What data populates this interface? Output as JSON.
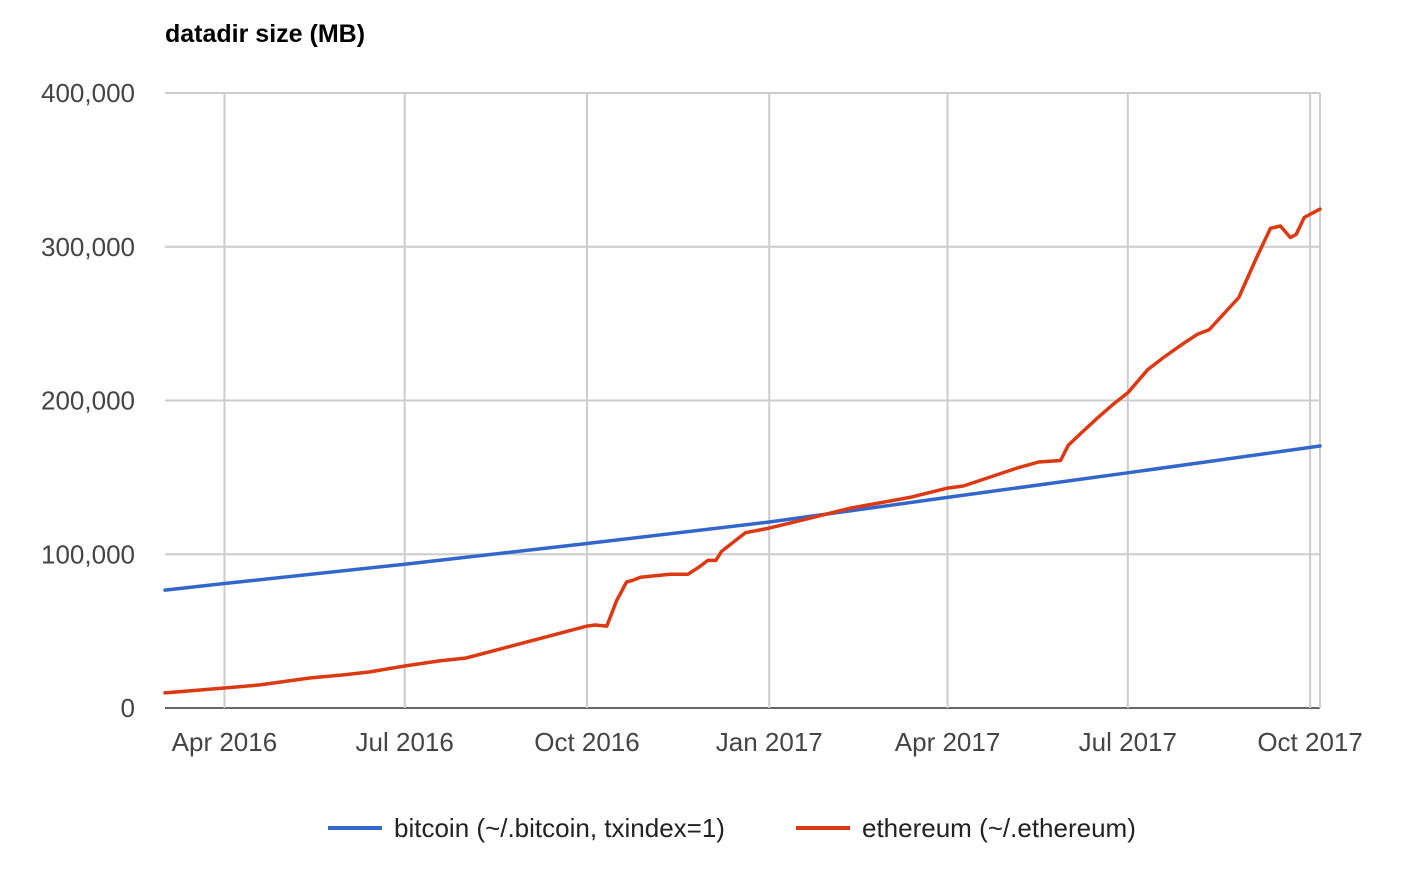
{
  "chart_data": {
    "type": "line",
    "title": "datadir size (MB)",
    "xlabel": "",
    "ylabel": "",
    "xlim": [
      "2016-03-02",
      "2017-10-06"
    ],
    "ylim": [
      0,
      400000
    ],
    "grid": true,
    "legend_position": "bottom",
    "y_ticks": [
      0,
      100000,
      200000,
      300000,
      400000
    ],
    "y_tick_labels": [
      "0",
      "100,000",
      "200,000",
      "300,000",
      "400,000"
    ],
    "x_ticks": [
      "2016-04-01",
      "2016-07-01",
      "2016-10-01",
      "2017-01-01",
      "2017-04-01",
      "2017-07-01",
      "2017-10-01"
    ],
    "x_tick_labels": [
      "Apr 2016",
      "Jul 2016",
      "Oct 2016",
      "Jan 2017",
      "Apr 2017",
      "Jul 2017",
      "Oct 2017"
    ],
    "series": [
      {
        "name": "bitcoin (~/.bitcoin, txindex=1)",
        "color": "#3366cc",
        "points": [
          [
            "2016-03-02",
            76700
          ],
          [
            "2016-04-01",
            81000
          ],
          [
            "2016-07-01",
            93500
          ],
          [
            "2016-10-01",
            107000
          ],
          [
            "2017-01-01",
            121000
          ],
          [
            "2017-04-01",
            137000
          ],
          [
            "2017-07-01",
            153000
          ],
          [
            "2017-10-06",
            170400
          ]
        ]
      },
      {
        "name": "ethereum (~/.ethereum)",
        "color": "#dc3912",
        "points": [
          [
            "2016-03-02",
            9800
          ],
          [
            "2016-04-01",
            13000
          ],
          [
            "2016-04-19",
            15000
          ],
          [
            "2016-05-14",
            19500
          ],
          [
            "2016-05-31",
            21500
          ],
          [
            "2016-06-13",
            23400
          ],
          [
            "2016-07-01",
            27300
          ],
          [
            "2016-07-18",
            30600
          ],
          [
            "2016-08-01",
            32500
          ],
          [
            "2016-10-01",
            53300
          ],
          [
            "2016-10-05",
            54000
          ],
          [
            "2016-10-11",
            53300
          ],
          [
            "2016-10-16",
            70000
          ],
          [
            "2016-10-21",
            82000
          ],
          [
            "2016-10-24",
            83000
          ],
          [
            "2016-10-28",
            85000
          ],
          [
            "2016-11-12",
            87000
          ],
          [
            "2016-11-21",
            87000
          ],
          [
            "2016-11-27",
            92000
          ],
          [
            "2016-12-01",
            96000
          ],
          [
            "2016-12-05",
            96000
          ],
          [
            "2016-12-08",
            102000
          ],
          [
            "2016-12-15",
            109000
          ],
          [
            "2016-12-20",
            114000
          ],
          [
            "2017-01-01",
            117000
          ],
          [
            "2017-01-17",
            122000
          ],
          [
            "2017-02-11",
            130000
          ],
          [
            "2017-02-24",
            133000
          ],
          [
            "2017-03-13",
            137000
          ],
          [
            "2017-04-01",
            143000
          ],
          [
            "2017-04-09",
            144400
          ],
          [
            "2017-04-22",
            150000
          ],
          [
            "2017-05-06",
            156000
          ],
          [
            "2017-05-17",
            160000
          ],
          [
            "2017-05-28",
            161000
          ],
          [
            "2017-06-01",
            171000
          ],
          [
            "2017-06-08",
            179500
          ],
          [
            "2017-06-16",
            189000
          ],
          [
            "2017-06-24",
            198000
          ],
          [
            "2017-07-01",
            205000
          ],
          [
            "2017-07-11",
            220000
          ],
          [
            "2017-07-19",
            228000
          ],
          [
            "2017-07-29",
            237000
          ],
          [
            "2017-08-05",
            243000
          ],
          [
            "2017-08-11",
            246000
          ],
          [
            "2017-08-26",
            267000
          ],
          [
            "2017-09-04",
            293000
          ],
          [
            "2017-09-11",
            312000
          ],
          [
            "2017-09-16",
            313500
          ],
          [
            "2017-09-21",
            306000
          ],
          [
            "2017-09-24",
            308000
          ],
          [
            "2017-09-28",
            319000
          ],
          [
            "2017-10-06",
            324500
          ]
        ]
      }
    ]
  }
}
